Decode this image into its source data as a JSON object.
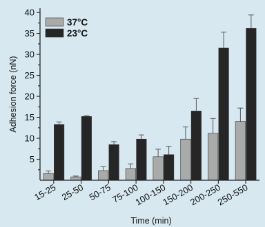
{
  "chart_data": {
    "type": "bar",
    "xlabel": "Time (min)",
    "ylabel": "Adhesion force (nN)",
    "ylim": [
      0,
      41
    ],
    "yticks": [
      5,
      10,
      15,
      20,
      25,
      30,
      35,
      40
    ],
    "categories": [
      "15-25",
      "25-50",
      "50-75",
      "75-100",
      "100-150",
      "150-200",
      "200-250",
      "250-550"
    ],
    "series": [
      {
        "name": "37°C",
        "color": "#a9aaaa",
        "values": [
          1.6,
          0.8,
          2.3,
          2.8,
          5.6,
          9.8,
          11.2,
          14.0
        ],
        "errors": [
          0.6,
          0.2,
          0.9,
          1.1,
          1.8,
          2.9,
          3.5,
          3.2
        ]
      },
      {
        "name": "23°C",
        "color": "#262626",
        "values": [
          13.3,
          15.2,
          8.5,
          9.8,
          6.1,
          16.5,
          31.5,
          36.2
        ],
        "errors": [
          0.6,
          0.2,
          0.7,
          1.0,
          2.0,
          3.0,
          3.8,
          3.2
        ]
      }
    ],
    "legend_position": "top-left",
    "grid": false
  }
}
